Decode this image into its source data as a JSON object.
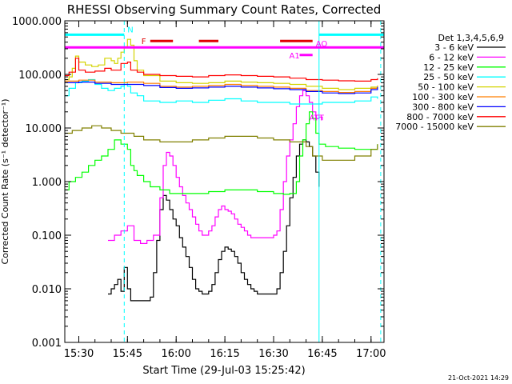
{
  "chart_data": {
    "type": "line",
    "title": "RHESSI Observing Summary Count Rates, Corrected",
    "xlabel": "Start Time (29-Jul-03 15:25:42)",
    "ylabel": "Corrected Count Rate (s⁻¹ detector⁻¹)",
    "y_scale": "log",
    "ylim": [
      0.001,
      1000
    ],
    "xlim": [
      "15:25:42",
      "17:04:00"
    ],
    "y_ticks": [
      "0.001",
      "0.010",
      "0.100",
      "1.000",
      "10.000",
      "100.000",
      "1000.000"
    ],
    "x_ticks": [
      "15:30",
      "15:45",
      "16:00",
      "16:15",
      "16:30",
      "16:45",
      "17:00"
    ],
    "legend_title": "Det 1,3,4,5,6,9",
    "legend_position": "right",
    "footer": "21-Oct-2021 14:29",
    "series": [
      {
        "name": "3 - 6 keV",
        "color": "#000000",
        "x": [
          "15:39",
          "15:40",
          "15:41",
          "15:42",
          "15:43",
          "15:44",
          "15:45",
          "15:46",
          "15:47",
          "15:48",
          "15:49",
          "15:50",
          "15:51",
          "15:52",
          "15:53",
          "15:54",
          "15:55",
          "15:56",
          "15:57",
          "15:58",
          "15:59",
          "16:00",
          "16:01",
          "16:02",
          "16:03",
          "16:04",
          "16:05",
          "16:06",
          "16:07",
          "16:08",
          "16:09",
          "16:10",
          "16:11",
          "16:12",
          "16:13",
          "16:14",
          "16:15",
          "16:16",
          "16:17",
          "16:18",
          "16:19",
          "16:20",
          "16:21",
          "16:22",
          "16:23",
          "16:24",
          "16:25",
          "16:26",
          "16:27",
          "16:28",
          "16:29",
          "16:30",
          "16:31",
          "16:32",
          "16:33",
          "16:34",
          "16:35",
          "16:36",
          "16:37",
          "16:38",
          "16:39",
          "16:40",
          "16:41",
          "16:42",
          "16:43",
          "16:44"
        ],
        "y": [
          0.008,
          0.01,
          0.012,
          0.015,
          0.009,
          0.025,
          0.01,
          0.006,
          0.006,
          0.006,
          0.006,
          0.006,
          0.006,
          0.007,
          0.02,
          0.08,
          0.3,
          0.55,
          0.45,
          0.3,
          0.2,
          0.15,
          0.09,
          0.06,
          0.04,
          0.025,
          0.015,
          0.01,
          0.009,
          0.008,
          0.008,
          0.009,
          0.012,
          0.02,
          0.035,
          0.05,
          0.06,
          0.055,
          0.05,
          0.04,
          0.03,
          0.02,
          0.015,
          0.012,
          0.01,
          0.009,
          0.008,
          0.008,
          0.008,
          0.008,
          0.008,
          0.008,
          0.01,
          0.02,
          0.05,
          0.15,
          0.5,
          1.2,
          3,
          5,
          6,
          5.5,
          4.5,
          3,
          1.5,
          0.8
        ]
      },
      {
        "name": "6 - 12 keV",
        "color": "#ff00ff",
        "x": [
          "15:39",
          "15:41",
          "15:43",
          "15:45",
          "15:47",
          "15:49",
          "15:51",
          "15:53",
          "15:55",
          "15:56",
          "15:57",
          "15:58",
          "15:59",
          "16:00",
          "16:01",
          "16:02",
          "16:03",
          "16:04",
          "16:05",
          "16:06",
          "16:07",
          "16:08",
          "16:09",
          "16:10",
          "16:11",
          "16:12",
          "16:13",
          "16:14",
          "16:15",
          "16:16",
          "16:17",
          "16:18",
          "16:19",
          "16:20",
          "16:21",
          "16:22",
          "16:23",
          "16:24",
          "16:25",
          "16:26",
          "16:27",
          "16:28",
          "16:29",
          "16:30",
          "16:31",
          "16:32",
          "16:33",
          "16:34",
          "16:35",
          "16:36",
          "16:37",
          "16:38",
          "16:39",
          "16:40",
          "16:41",
          "16:42",
          "16:43",
          "16:44",
          "16:45"
        ],
        "y": [
          0.08,
          0.1,
          0.12,
          0.15,
          0.08,
          0.07,
          0.08,
          0.1,
          0.5,
          2,
          3.5,
          3,
          2,
          1.2,
          0.8,
          0.55,
          0.4,
          0.3,
          0.22,
          0.16,
          0.12,
          0.1,
          0.1,
          0.12,
          0.15,
          0.22,
          0.3,
          0.35,
          0.3,
          0.28,
          0.25,
          0.2,
          0.16,
          0.14,
          0.12,
          0.1,
          0.09,
          0.09,
          0.09,
          0.09,
          0.09,
          0.09,
          0.09,
          0.1,
          0.12,
          0.3,
          1,
          3,
          6,
          12,
          25,
          40,
          50,
          40,
          30,
          20,
          15,
          16,
          14
        ]
      },
      {
        "name": "12 - 25 keV",
        "color": "#00ff00",
        "x": [
          "15:25:42",
          "15:27",
          "15:29",
          "15:31",
          "15:33",
          "15:35",
          "15:37",
          "15:39",
          "15:41",
          "15:43",
          "15:45",
          "15:46",
          "15:47",
          "15:48",
          "15:50",
          "15:52",
          "15:55",
          "15:58",
          "16:00",
          "16:05",
          "16:10",
          "16:15",
          "16:20",
          "16:25",
          "16:30",
          "16:33",
          "16:35",
          "16:37",
          "16:38",
          "16:39",
          "16:40",
          "16:41",
          "16:42",
          "16:43",
          "16:44",
          "16:46",
          "16:50",
          "16:55",
          "17:00",
          "17:02"
        ],
        "y": [
          0.7,
          1,
          1.2,
          1.5,
          2,
          2.5,
          3,
          4,
          6,
          5,
          4,
          2,
          1.6,
          1.3,
          1,
          0.8,
          0.7,
          0.6,
          0.6,
          0.6,
          0.65,
          0.7,
          0.7,
          0.65,
          0.6,
          0.58,
          0.6,
          1,
          3,
          6,
          12,
          20,
          15,
          8,
          5,
          4.5,
          4.2,
          4,
          4,
          5
        ]
      },
      {
        "name": "25 - 50 keV",
        "color": "#00ffff",
        "x": [
          "15:25:42",
          "15:27",
          "15:29",
          "15:31",
          "15:33",
          "15:35",
          "15:37",
          "15:39",
          "15:41",
          "15:43",
          "15:44",
          "15:45",
          "15:46",
          "15:48",
          "15:50",
          "15:55",
          "16:00",
          "16:05",
          "16:10",
          "16:15",
          "16:20",
          "16:25",
          "16:30",
          "16:35",
          "16:40",
          "16:45",
          "16:50",
          "16:55",
          "17:00",
          "17:02"
        ],
        "y": [
          40,
          55,
          70,
          75,
          80,
          65,
          55,
          50,
          55,
          60,
          70,
          60,
          45,
          40,
          32,
          30,
          32,
          30,
          33,
          35,
          32,
          30,
          30,
          28,
          28,
          30,
          30,
          32,
          38,
          35
        ]
      },
      {
        "name": "50 - 100 keV",
        "color": "#d4d400",
        "x": [
          "15:25:42",
          "15:27",
          "15:28",
          "15:29",
          "15:30",
          "15:32",
          "15:34",
          "15:36",
          "15:38",
          "15:40",
          "15:41",
          "15:42",
          "15:43",
          "15:44",
          "15:45",
          "15:46",
          "15:47",
          "15:48",
          "15:50",
          "15:55",
          "16:00",
          "16:05",
          "16:10",
          "16:15",
          "16:20",
          "16:25",
          "16:30",
          "16:35",
          "16:40",
          "16:45",
          "16:50",
          "16:55",
          "17:00",
          "17:02"
        ],
        "y": [
          80,
          90,
          130,
          220,
          170,
          150,
          140,
          150,
          200,
          180,
          160,
          200,
          260,
          320,
          450,
          350,
          180,
          120,
          95,
          75,
          70,
          68,
          70,
          75,
          72,
          70,
          68,
          65,
          60,
          55,
          52,
          55,
          58,
          62
        ]
      },
      {
        "name": "100 - 300 keV",
        "color": "#ff7f00",
        "x": [
          "15:25:42",
          "15:30",
          "15:35",
          "15:40",
          "15:45",
          "15:50",
          "15:55",
          "16:00",
          "16:05",
          "16:10",
          "16:15",
          "16:20",
          "16:25",
          "16:30",
          "16:35",
          "16:40",
          "16:45",
          "16:50",
          "16:55",
          "17:00",
          "17:02"
        ],
        "y": [
          75,
          78,
          72,
          70,
          72,
          68,
          60,
          58,
          60,
          62,
          65,
          62,
          60,
          58,
          55,
          50,
          48,
          46,
          48,
          55,
          60
        ]
      },
      {
        "name": "300 - 800 keV",
        "color": "#0000ff",
        "x": [
          "15:25:42",
          "15:30",
          "15:35",
          "15:40",
          "15:45",
          "15:50",
          "15:55",
          "16:00",
          "16:05",
          "16:10",
          "16:15",
          "16:20",
          "16:25",
          "16:30",
          "16:35",
          "16:40",
          "16:45",
          "16:50",
          "16:55",
          "17:00",
          "17:02"
        ],
        "y": [
          70,
          72,
          68,
          65,
          65,
          62,
          57,
          55,
          56,
          58,
          60,
          58,
          56,
          54,
          52,
          48,
          45,
          44,
          45,
          52,
          58
        ]
      },
      {
        "name": "800 - 7000 keV",
        "color": "#ff0000",
        "x": [
          "15:25:42",
          "15:27",
          "15:29",
          "15:30",
          "15:32",
          "15:35",
          "15:38",
          "15:40",
          "15:43",
          "15:45",
          "15:46",
          "15:48",
          "15:50",
          "15:55",
          "16:00",
          "16:05",
          "16:10",
          "16:15",
          "16:20",
          "16:25",
          "16:30",
          "16:35",
          "16:40",
          "16:45",
          "16:50",
          "16:55",
          "17:00",
          "17:02"
        ],
        "y": [
          95,
          110,
          200,
          120,
          110,
          115,
          130,
          120,
          160,
          170,
          120,
          110,
          100,
          95,
          92,
          90,
          95,
          98,
          95,
          92,
          90,
          85,
          80,
          78,
          76,
          75,
          80,
          85
        ]
      },
      {
        "name": "7000 - 15000 keV",
        "color": "#808000",
        "x": [
          "15:25:42",
          "15:28",
          "15:31",
          "15:34",
          "15:37",
          "15:40",
          "15:43",
          "15:45",
          "15:47",
          "15:50",
          "15:55",
          "16:00",
          "16:05",
          "16:10",
          "16:15",
          "16:20",
          "16:25",
          "16:30",
          "16:35",
          "16:40",
          "16:42",
          "16:44",
          "16:45",
          "16:50",
          "16:55",
          "17:00",
          "17:02"
        ],
        "y": [
          8,
          9,
          10,
          11,
          10,
          9,
          8,
          8,
          7,
          6,
          5.5,
          5.5,
          6,
          6.5,
          7,
          7,
          6.5,
          6,
          5.5,
          4.5,
          3,
          3,
          2.5,
          2.5,
          3,
          4,
          5
        ]
      }
    ],
    "vertical_lines": [
      {
        "time": "15:25:42",
        "style": "solid",
        "color": "#00ffff"
      },
      {
        "time": "15:44",
        "style": "dashed",
        "color": "#00ffff"
      },
      {
        "time": "16:44",
        "style": "solid",
        "color": "#00ffff"
      },
      {
        "time": "17:03",
        "style": "dashed",
        "color": "#00ffff"
      }
    ],
    "state_bars": [
      {
        "label": "N",
        "color": "#00ffff",
        "level": 550,
        "segments": [
          [
            "15:25:42",
            "15:44"
          ],
          [
            "16:44",
            "17:04"
          ]
        ]
      },
      {
        "label": "F",
        "color": "#e00000",
        "level": 420,
        "segments": [
          [
            "15:52",
            "15:59"
          ],
          [
            "16:07",
            "16:13"
          ],
          [
            "16:32",
            "16:42"
          ]
        ]
      },
      {
        "label": "AO",
        "color": "#ff00ff",
        "level": 320,
        "segments": [
          [
            "15:25:42",
            "17:04"
          ]
        ]
      },
      {
        "label": "A1",
        "color": "#ff00ff",
        "level": 230,
        "segments": [
          [
            "16:38",
            "16:42"
          ]
        ]
      },
      {
        "label": "ATT",
        "color": "#ff00ff",
        "level": 16,
        "segments": []
      }
    ]
  }
}
